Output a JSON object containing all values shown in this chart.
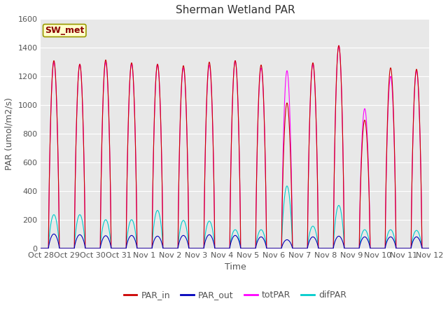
{
  "title": "Sherman Wetland PAR",
  "ylabel": "PAR (umol/m2/s)",
  "xlabel": "Time",
  "annotation": "SW_met",
  "ylim": [
    0,
    1600
  ],
  "background_color": "#e8e8e8",
  "colors": {
    "PAR_in": "#cc0000",
    "PAR_out": "#0000bb",
    "totPAR": "#ff00ff",
    "difPAR": "#00cccc"
  },
  "x_tick_labels": [
    "Oct 28",
    "Oct 29",
    "Oct 30",
    "Oct 31",
    "Nov 1",
    "Nov 2",
    "Nov 3",
    "Nov 4",
    "Nov 5",
    "Nov 6",
    "Nov 7",
    "Nov 8",
    "Nov 9",
    "Nov 10",
    "Nov 11",
    "Nov 12"
  ],
  "n_days": 15,
  "peaks_PAR_in": [
    1310,
    1285,
    1315,
    1295,
    1285,
    1275,
    1300,
    1310,
    1280,
    1015,
    1295,
    1415,
    895,
    1260,
    1250
  ],
  "peaks_PAR_out": [
    100,
    95,
    88,
    90,
    85,
    90,
    95,
    90,
    80,
    60,
    80,
    85,
    80,
    80,
    80
  ],
  "peaks_totPAR": [
    1300,
    1285,
    1300,
    1290,
    1285,
    1260,
    1280,
    1310,
    1260,
    1240,
    1285,
    1415,
    975,
    1200,
    1240
  ],
  "peaks_difPAR": [
    235,
    235,
    200,
    200,
    265,
    195,
    190,
    130,
    130,
    435,
    155,
    300,
    130,
    130,
    125
  ],
  "title_fontsize": 11,
  "label_fontsize": 9,
  "tick_fontsize": 8,
  "legend_fontsize": 9,
  "figwidth": 6.4,
  "figheight": 4.8,
  "dpi": 100
}
